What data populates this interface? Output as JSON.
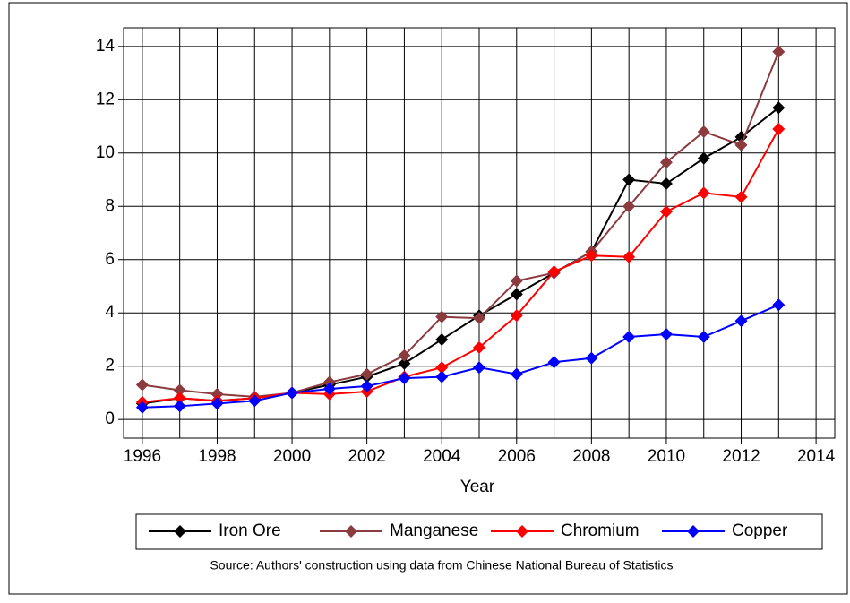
{
  "chart_data": {
    "type": "line",
    "x_label": "Year",
    "note": "Source: Authors' construction using data from Chinese National Bureau of Statistics",
    "x": [
      1996,
      1997,
      1998,
      1999,
      2000,
      2001,
      2002,
      2003,
      2004,
      2005,
      2006,
      2007,
      2008,
      2009,
      2010,
      2011,
      2012,
      2013
    ],
    "series": [
      {
        "name": "Iron Ore",
        "color": "#000000",
        "values": [
          0.6,
          0.8,
          0.7,
          0.8,
          1.0,
          1.3,
          1.6,
          2.1,
          3.0,
          3.9,
          4.7,
          5.5,
          6.3,
          9.0,
          8.85,
          9.8,
          10.6,
          11.7
        ]
      },
      {
        "name": "Manganese",
        "color": "#8b3a3e",
        "values": [
          1.3,
          1.1,
          0.95,
          0.85,
          1.0,
          1.4,
          1.7,
          2.4,
          3.85,
          3.8,
          5.2,
          5.5,
          6.3,
          8.0,
          9.65,
          10.8,
          10.3,
          13.8
        ]
      },
      {
        "name": "Chromium",
        "color": "#ff0000",
        "values": [
          0.65,
          0.8,
          0.7,
          0.8,
          1.0,
          0.95,
          1.05,
          1.6,
          1.95,
          2.7,
          3.9,
          5.55,
          6.15,
          6.1,
          7.8,
          8.5,
          8.35,
          10.9
        ]
      },
      {
        "name": "Copper",
        "color": "#0000ff",
        "values": [
          0.45,
          0.5,
          0.6,
          0.7,
          1.0,
          1.15,
          1.25,
          1.55,
          1.6,
          1.95,
          1.7,
          2.15,
          2.3,
          3.1,
          3.2,
          3.1,
          3.7,
          4.3
        ]
      }
    ],
    "xlim": [
      1995.5,
      2014.5
    ],
    "xticks": [
      1996,
      1998,
      2000,
      2002,
      2004,
      2006,
      2008,
      2010,
      2012,
      2014
    ],
    "ylim": [
      -0.7,
      14.7
    ],
    "yticks": [
      0,
      2,
      4,
      6,
      8,
      10,
      12,
      14
    ],
    "grid": true
  }
}
